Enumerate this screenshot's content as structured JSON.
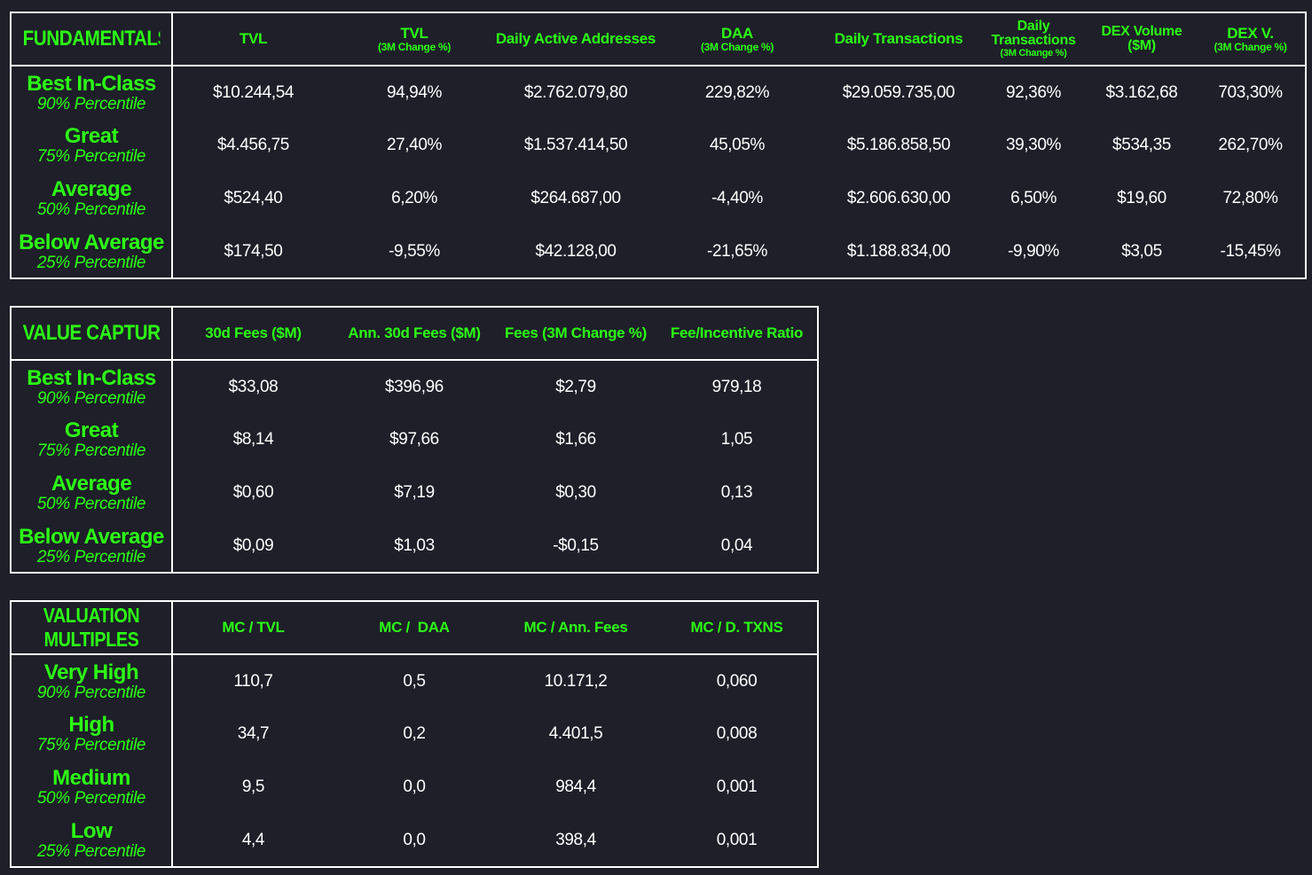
{
  "fundamentals": {
    "title": "FUNDAMENTALS",
    "columns": [
      {
        "label": "TVL",
        "sub": ""
      },
      {
        "label": "TVL",
        "sub": "(3M Change %)"
      },
      {
        "label": "Daily Active Addresses",
        "sub": ""
      },
      {
        "label": "DAA",
        "sub": "(3M Change %)"
      },
      {
        "label": "Daily Transactions",
        "sub": ""
      },
      {
        "label": "Daily Transactions",
        "sub": "(3M Change %)"
      },
      {
        "label": "DEX Volume ($M)",
        "sub": ""
      },
      {
        "label": "DEX V.",
        "sub": "(3M Change %)"
      }
    ],
    "rows": [
      {
        "label": "Best In-Class",
        "pct": "90% Percentile",
        "values": [
          "$10.244,54",
          "94,94%",
          "$2.762.079,80",
          "229,82%",
          "$29.059.735,00",
          "92,36%",
          "$3.162,68",
          "703,30%"
        ]
      },
      {
        "label": "Great",
        "pct": "75% Percentile",
        "values": [
          "$4.456,75",
          "27,40%",
          "$1.537.414,50",
          "45,05%",
          "$5.186.858,50",
          "39,30%",
          "$534,35",
          "262,70%"
        ]
      },
      {
        "label": "Average",
        "pct": "50% Percentile",
        "values": [
          "$524,40",
          "6,20%",
          "$264.687,00",
          "-4,40%",
          "$2.606.630,00",
          "6,50%",
          "$19,60",
          "72,80%"
        ]
      },
      {
        "label": "Below Average",
        "pct": "25% Percentile",
        "values": [
          "$174,50",
          "-9,55%",
          "$42.128,00",
          "-21,65%",
          "$1.188.834,00",
          "-9,90%",
          "$3,05",
          "-15,45%"
        ]
      }
    ]
  },
  "value_capture": {
    "title": "VALUE CAPTURE",
    "columns": [
      {
        "label": "30d Fees ($M)",
        "sub": ""
      },
      {
        "label": "Ann. 30d Fees ($M)",
        "sub": ""
      },
      {
        "label": "Fees (3M Change %)",
        "sub": ""
      },
      {
        "label": "Fee/Incentive Ratio",
        "sub": ""
      }
    ],
    "rows": [
      {
        "label": "Best In-Class",
        "pct": "90% Percentile",
        "values": [
          "$33,08",
          "$396,96",
          "$2,79",
          "979,18"
        ]
      },
      {
        "label": "Great",
        "pct": "75% Percentile",
        "values": [
          "$8,14",
          "$97,66",
          "$1,66",
          "1,05"
        ]
      },
      {
        "label": "Average",
        "pct": "50% Percentile",
        "values": [
          "$0,60",
          "$7,19",
          "$0,30",
          "0,13"
        ]
      },
      {
        "label": "Below Average",
        "pct": "25% Percentile",
        "values": [
          "$0,09",
          "$1,03",
          "-$0,15",
          "0,04"
        ]
      }
    ]
  },
  "valuation_multiples": {
    "title_line1": "VALUATION",
    "title_line2": "MULTIPLES",
    "columns": [
      {
        "label": "MC / TVL",
        "sub": ""
      },
      {
        "label": "MC /  DAA",
        "sub": ""
      },
      {
        "label": "MC / Ann. Fees",
        "sub": ""
      },
      {
        "label": "MC / D. TXNS",
        "sub": ""
      }
    ],
    "rows": [
      {
        "label": "Very High",
        "pct": "90% Percentile",
        "values": [
          "110,7",
          "0,5",
          "10.171,2",
          "0,060"
        ]
      },
      {
        "label": "High",
        "pct": "75% Percentile",
        "values": [
          "34,7",
          "0,2",
          "4.401,5",
          "0,008"
        ]
      },
      {
        "label": "Medium",
        "pct": "50% Percentile",
        "values": [
          "9,5",
          "0,0",
          "984,4",
          "0,001"
        ]
      },
      {
        "label": "Low",
        "pct": "25% Percentile",
        "values": [
          "4,4",
          "0,0",
          "398,4",
          "0,001"
        ]
      }
    ]
  }
}
